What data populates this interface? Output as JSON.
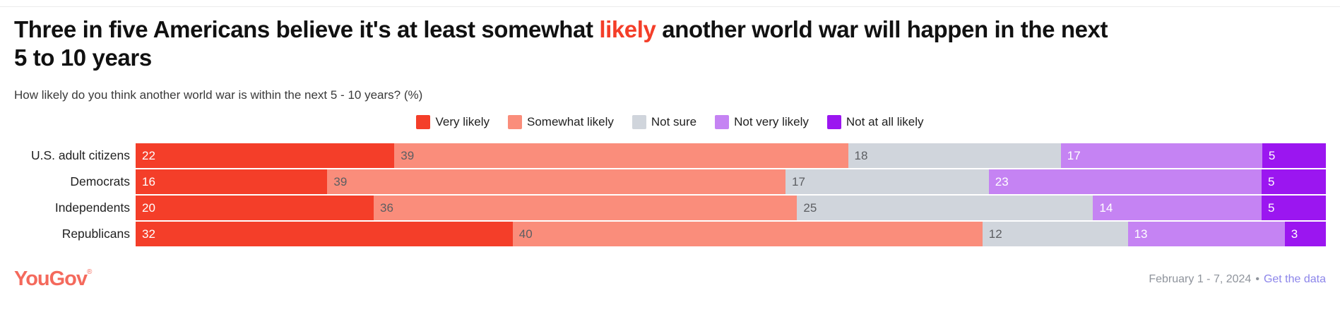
{
  "header": {
    "title_before": "Three in five Americans believe it's at least somewhat ",
    "title_highlight": "likely",
    "title_after": " another world war will happen in the next 5 to 10 years",
    "subtitle": "How likely do you think another world war is within the next 5 - 10 years? (%)"
  },
  "colors": {
    "highlight": "#f43e29",
    "very_likely": "#f43e29",
    "somewhat_likely": "#fa8d7b",
    "not_sure": "#d0d5dc",
    "not_very_likely": "#c583f3",
    "not_at_all_likely": "#9b16f0",
    "link": "#8c85ea",
    "logo": "#f4695c",
    "footer_text": "#8f949c"
  },
  "chart_data": {
    "type": "bar",
    "stacked": true,
    "orientation": "horizontal",
    "title": "Three in five Americans believe it's at least somewhat likely another world war will happen in the next 5 to 10 years",
    "subtitle": "How likely do you think another world war is within the next 5 - 10 years? (%)",
    "xlabel": "",
    "ylabel": "",
    "xlim": [
      0,
      100
    ],
    "grid": false,
    "legend_position": "top-center",
    "value_unit": "%",
    "categories": [
      "U.S. adult citizens",
      "Democrats",
      "Independents",
      "Republicans"
    ],
    "series": [
      {
        "name": "Very likely",
        "color": "#f43e29",
        "label_color": "#ffffff",
        "values": [
          22,
          16,
          20,
          32
        ]
      },
      {
        "name": "Somewhat likely",
        "color": "#fa8d7b",
        "label_color": "#5c5e62",
        "values": [
          39,
          39,
          36,
          40
        ]
      },
      {
        "name": "Not sure",
        "color": "#d0d5dc",
        "label_color": "#5c5e62",
        "values": [
          18,
          17,
          25,
          12
        ]
      },
      {
        "name": "Not very likely",
        "color": "#c583f3",
        "label_color": "#ffffff",
        "values": [
          17,
          23,
          14,
          13
        ]
      },
      {
        "name": "Not at all likely",
        "color": "#9b16f0",
        "label_color": "#ffffff",
        "values": [
          5,
          5,
          5,
          3
        ]
      }
    ]
  },
  "footer": {
    "logo_text": "YouGov",
    "logo_reg": "®",
    "date_range": "February 1 - 7, 2024",
    "separator": "•",
    "link_label": "Get the data"
  }
}
